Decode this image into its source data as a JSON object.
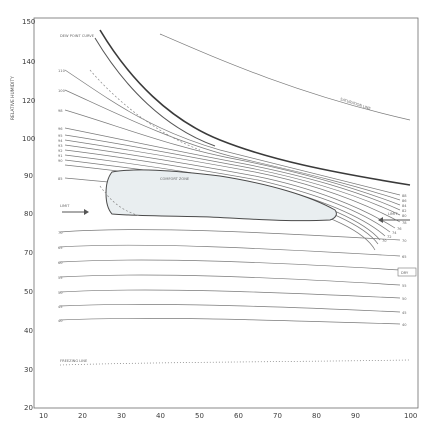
{
  "diagram": {
    "x_ticks": [
      "10",
      "20",
      "30",
      "40",
      "50",
      "60",
      "70",
      "80",
      "90",
      "100"
    ],
    "y_ticks": [
      "150",
      "140",
      "130",
      "120",
      "110",
      "100",
      "90",
      "80",
      "70",
      "60",
      "50",
      "40",
      "30",
      "20",
      "10"
    ],
    "y_axis_title": "RELATIVE HUMIDITY",
    "top_left_label": "DEW POINT CURVE",
    "upper_right_curve_label": "SATURATION LINE",
    "region_label": "COMFORT ZONE",
    "left_marker_label": "LIMIT",
    "right_marker_label": "LIMIT",
    "right_box_label": "DRY",
    "bottom_dotted_label": "FREEZING LINE",
    "left_curve_values": [
      "110",
      "100",
      "98",
      "96",
      "95",
      "94",
      "93",
      "92",
      "91",
      "90",
      "85"
    ],
    "right_curve_values": [
      "88",
      "86",
      "84",
      "82",
      "80",
      "78",
      "76",
      "74",
      "72",
      "70"
    ],
    "lower_left_values": [
      "70",
      "65",
      "60",
      "55",
      "50",
      "45",
      "40"
    ],
    "lower_right_values": [
      "70",
      "65",
      "60",
      "55",
      "50",
      "45",
      "40"
    ]
  }
}
